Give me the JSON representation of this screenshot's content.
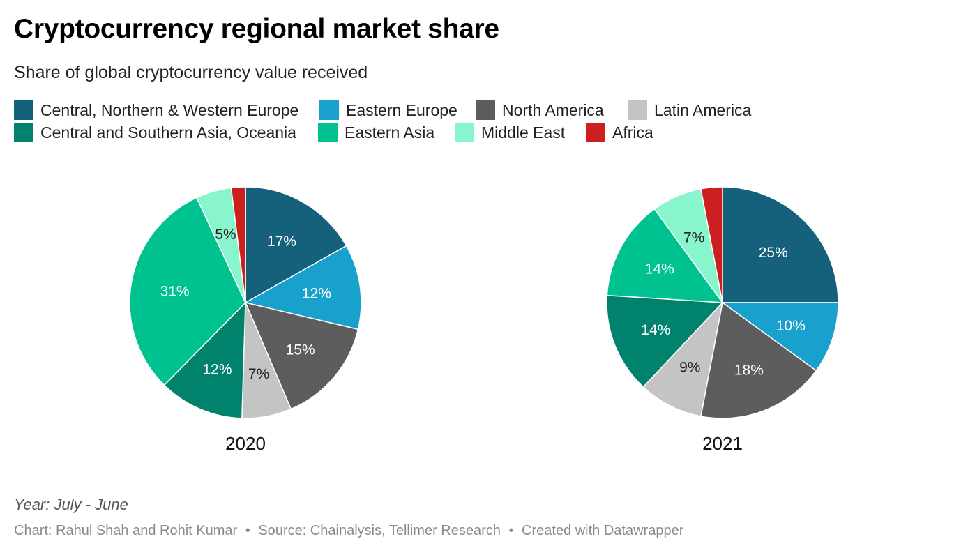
{
  "header": {
    "title": "Cryptocurrency regional market share",
    "subtitle": "Share of global cryptocurrency value received"
  },
  "legend": {
    "items": [
      {
        "label": "Central, Northern & Western Europe",
        "color": "#15607a"
      },
      {
        "label": "Eastern Europe",
        "color": "#18a1cd"
      },
      {
        "label": "North America",
        "color": "#5d5d5d"
      },
      {
        "label": "Latin America",
        "color": "#c4c4c4"
      },
      {
        "label": "Central and Southern Asia, Oceania",
        "color": "#00826d"
      },
      {
        "label": "Eastern Asia",
        "color": "#00c290"
      },
      {
        "label": "Middle East",
        "color": "#88f5cd"
      },
      {
        "label": "Africa",
        "color": "#cc1f1f"
      }
    ]
  },
  "chart_data": {
    "type": "pie",
    "title": "Cryptocurrency regional market share",
    "subtitle": "Share of global cryptocurrency value received",
    "categories": [
      "Central, Northern & Western Europe",
      "Eastern Europe",
      "North America",
      "Latin America",
      "Central and Southern Asia, Oceania",
      "Eastern Asia",
      "Middle East",
      "Africa"
    ],
    "series": [
      {
        "name": "2020",
        "values": [
          17,
          12,
          15,
          7,
          12,
          31,
          5,
          2
        ],
        "labels": [
          "17%",
          "12%",
          "15%",
          "7%",
          "12%",
          "31%",
          "5%",
          ""
        ]
      },
      {
        "name": "2021",
        "values": [
          25,
          10,
          18,
          9,
          14,
          14,
          7,
          3
        ],
        "labels": [
          "25%",
          "10%",
          "18%",
          "9%",
          "14%",
          "14%",
          "7%",
          ""
        ]
      }
    ],
    "unit": "%"
  },
  "notes": {
    "year_note": "Year: July - June"
  },
  "footer": {
    "chart_credit": "Chart: Rahul Shah and Rohit Kumar",
    "source": "Source: Chainalysis, Tellimer Research",
    "tool": "Created with Datawrapper",
    "separator": "•"
  }
}
